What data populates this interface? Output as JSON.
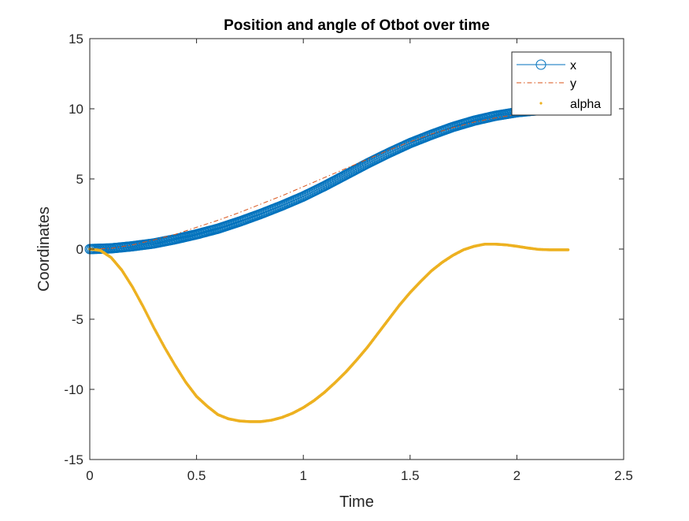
{
  "chart_data": {
    "type": "line",
    "title": "Position and angle of Otbot over time",
    "xlabel": "Time",
    "ylabel": "Coordinates",
    "xlim": [
      0,
      2.5
    ],
    "ylim": [
      -15,
      15
    ],
    "xticks": [
      0,
      0.5,
      1,
      1.5,
      2,
      2.5
    ],
    "xtick_labels": [
      "0",
      "0.5",
      "1",
      "1.5",
      "2",
      "2.5"
    ],
    "yticks": [
      -15,
      -10,
      -5,
      0,
      5,
      10,
      15
    ],
    "ytick_labels": [
      "-15",
      "-10",
      "-5",
      "0",
      "5",
      "10",
      "15"
    ],
    "grid": false,
    "legend_position": "top-right",
    "series": [
      {
        "name": "x",
        "color": "#0072BD",
        "style": "solid line with circle markers",
        "x": [
          0,
          0.1,
          0.2,
          0.3,
          0.4,
          0.5,
          0.6,
          0.7,
          0.8,
          0.9,
          1.0,
          1.1,
          1.2,
          1.3,
          1.4,
          1.5,
          1.6,
          1.7,
          1.8,
          1.9,
          2.0,
          2.1,
          2.2,
          2.24
        ],
        "y": [
          0,
          0.05,
          0.2,
          0.4,
          0.7,
          1.05,
          1.45,
          1.95,
          2.5,
          3.1,
          3.75,
          4.5,
          5.3,
          6.1,
          6.85,
          7.55,
          8.15,
          8.7,
          9.15,
          9.5,
          9.75,
          9.9,
          9.98,
          10.0
        ]
      },
      {
        "name": "y",
        "color": "#D95319",
        "style": "dash-dot line",
        "x": [
          0,
          0.1,
          0.2,
          0.3,
          0.4,
          0.5,
          0.6,
          0.7,
          0.8,
          0.9,
          1.0,
          1.1,
          1.2,
          1.3,
          1.4,
          1.5,
          1.6,
          1.7,
          1.8,
          1.9,
          2.0,
          2.1,
          2.2,
          2.24
        ],
        "y": [
          0,
          0.05,
          0.3,
          0.65,
          1.05,
          1.55,
          2.05,
          2.6,
          3.2,
          3.8,
          4.45,
          5.1,
          5.75,
          6.4,
          7.05,
          7.65,
          8.2,
          8.65,
          9.05,
          9.35,
          9.6,
          9.8,
          9.92,
          9.95
        ]
      },
      {
        "name": "alpha",
        "color": "#EDB120",
        "style": "dot markers",
        "x": [
          0,
          0.05,
          0.1,
          0.15,
          0.2,
          0.25,
          0.3,
          0.35,
          0.4,
          0.45,
          0.5,
          0.55,
          0.6,
          0.65,
          0.7,
          0.75,
          0.8,
          0.85,
          0.9,
          0.95,
          1.0,
          1.05,
          1.1,
          1.15,
          1.2,
          1.25,
          1.3,
          1.35,
          1.4,
          1.45,
          1.5,
          1.55,
          1.6,
          1.65,
          1.7,
          1.75,
          1.8,
          1.85,
          1.9,
          1.95,
          2.0,
          2.05,
          2.1,
          2.15,
          2.2,
          2.24
        ],
        "y": [
          0,
          -0.1,
          -0.6,
          -1.5,
          -2.7,
          -4.1,
          -5.6,
          -7.0,
          -8.3,
          -9.5,
          -10.5,
          -11.2,
          -11.8,
          -12.1,
          -12.25,
          -12.3,
          -12.3,
          -12.2,
          -12.0,
          -11.7,
          -11.3,
          -10.8,
          -10.2,
          -9.5,
          -8.75,
          -7.9,
          -7.0,
          -6.0,
          -5.0,
          -4.0,
          -3.1,
          -2.3,
          -1.55,
          -0.95,
          -0.45,
          -0.05,
          0.2,
          0.35,
          0.35,
          0.3,
          0.2,
          0.08,
          -0.02,
          -0.05,
          -0.05,
          -0.05
        ]
      }
    ]
  }
}
